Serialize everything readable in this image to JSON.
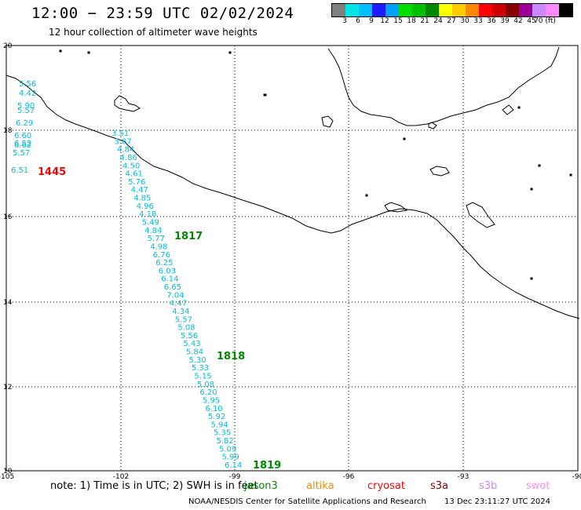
{
  "title": "12:00 − 23:59 UTC 02/02/2024",
  "subtitle": "12 hour collection of altimeter wave heights",
  "colorbar": {
    "colors": [
      "#7f7f7f",
      "#00e5e5",
      "#00bfff",
      "#1c1cff",
      "#00a0ff",
      "#00dd00",
      "#00c000",
      "#008800",
      "#ffff00",
      "#ffcc00",
      "#ff8800",
      "#ff0000",
      "#cc0000",
      "#880000",
      "#990099",
      "#cc88ff",
      "#ff88ff",
      "#000000"
    ],
    "labels": [
      "3",
      "6",
      "9",
      "12",
      "15",
      "18",
      "21",
      "24",
      "27",
      "30",
      "33",
      "36",
      "39",
      "42",
      "45",
      "70 (ft)"
    ]
  },
  "axes": {
    "lon_ticks": [
      "-105",
      "-102",
      "-99",
      "-96",
      "-93",
      "-90"
    ],
    "lat_ticks": [
      "20",
      "18",
      "16",
      "14",
      "12",
      "10"
    ]
  },
  "passes": [
    {
      "time": "1445",
      "color": "#ff0000"
    },
    {
      "time": "1817",
      "color": "#008800"
    },
    {
      "time": "1818",
      "color": "#008800"
    },
    {
      "time": "1819",
      "color": "#008800"
    }
  ],
  "track_west": [
    "5.56",
    "4.42",
    "5.90",
    "5.57",
    "6.29",
    "6.60",
    "6.52",
    "6.62",
    "5.57",
    "6.51"
  ],
  "track_east": [
    "3.51",
    "3.87",
    "4.84",
    "4.86",
    "4.50",
    "4.61",
    "5.76",
    "4.47",
    "4.85",
    "4.96",
    "4.18",
    "5.49",
    "4.84",
    "5.77",
    "4.98",
    "6.76",
    "6.25",
    "6.03",
    "6.14",
    "6.65",
    "7.04",
    "4.47",
    "4.34",
    "5.57",
    "5.08",
    "5.56",
    "5.43",
    "5.84",
    "5.30",
    "5.33",
    "5.15",
    "5.08",
    "6.20",
    "5.95",
    "6.10",
    "5.92",
    "5.94",
    "5.35",
    "5.82",
    "5.09",
    "5.99",
    "6.14"
  ],
  "note": {
    "text": "note: 1) Time is in UTC; 2) SWH is in feet",
    "satellites": [
      {
        "name": "jason3",
        "color": "#008800"
      },
      {
        "name": "altika",
        "color": "#ff8800"
      },
      {
        "name": "cryosat",
        "color": "#ff0000"
      },
      {
        "name": "s3a",
        "color": "#880000"
      },
      {
        "name": "s3b",
        "color": "#cc88ff"
      },
      {
        "name": "swot",
        "color": "#ff88ff"
      }
    ]
  },
  "footer": {
    "agency": "NOAA/NESDIS Center for Satellite Applications and Research",
    "generated": "13 Dec 23:11:27 UTC 2024"
  }
}
